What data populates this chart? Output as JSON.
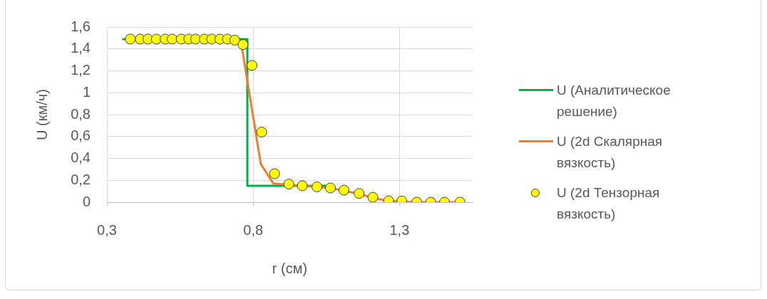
{
  "chart_data": {
    "type": "line",
    "xlabel": "r (см)",
    "ylabel": "U (км/ч)",
    "xlim": [
      0.3,
      1.55
    ],
    "xticks": [
      {
        "value": 0.3,
        "label": "0,3"
      },
      {
        "value": 0.8,
        "label": "0,8"
      },
      {
        "value": 1.3,
        "label": "1,3"
      }
    ],
    "ylim": [
      0,
      1.6
    ],
    "yticks": [
      0,
      {
        "value": 0.2,
        "label": "0,2"
      },
      {
        "value": 0.4,
        "label": "0,4"
      },
      {
        "value": 0.6,
        "label": "0,6"
      },
      {
        "value": 0.8,
        "label": "0,8"
      },
      1,
      {
        "value": 1.2,
        "label": "1,2"
      },
      {
        "value": 1.4,
        "label": "1,4"
      },
      {
        "value": 1.6,
        "label": "1,6"
      }
    ],
    "grid": true,
    "legend": "right",
    "series": [
      {
        "name": "U (Аналитическое решение)",
        "color": "#00b050",
        "x": [
          0.355,
          0.78,
          0.78,
          1.06
        ],
        "values": [
          1.49,
          1.49,
          0.15,
          0.15
        ]
      },
      {
        "name": "U (2d Скалярная вязкость)",
        "color": "#ed7d31",
        "x": [
          0.38,
          0.74,
          0.76,
          0.826,
          0.869,
          0.922,
          0.968,
          1.018,
          1.064,
          1.11,
          1.162,
          1.209,
          1.263,
          1.308,
          1.359,
          1.407,
          1.454,
          1.507
        ],
        "values": [
          1.49,
          1.49,
          1.44,
          0.35,
          0.17,
          0.16,
          0.15,
          0.14,
          0.13,
          0.105,
          0.075,
          0.04,
          0.01,
          0.005,
          0,
          0,
          0,
          0
        ]
      },
      {
        "name": "U (2d Тензорная вязкость)",
        "color": "#ffff00",
        "type": "scatter",
        "marker": "circle",
        "x": [
          0.38,
          0.414,
          0.44,
          0.469,
          0.499,
          0.523,
          0.554,
          0.58,
          0.603,
          0.633,
          0.658,
          0.686,
          0.712,
          0.737,
          0.765,
          0.796,
          0.829,
          0.873,
          0.922,
          0.968,
          1.018,
          1.064,
          1.11,
          1.162,
          1.209,
          1.263,
          1.308,
          1.359,
          1.407,
          1.454,
          1.507
        ],
        "values": [
          1.49,
          1.49,
          1.49,
          1.49,
          1.49,
          1.49,
          1.49,
          1.49,
          1.49,
          1.49,
          1.49,
          1.49,
          1.49,
          1.48,
          1.44,
          1.25,
          0.64,
          0.26,
          0.165,
          0.15,
          0.14,
          0.13,
          0.11,
          0.08,
          0.045,
          0.013,
          0.011,
          0,
          0,
          0,
          0
        ]
      }
    ]
  }
}
